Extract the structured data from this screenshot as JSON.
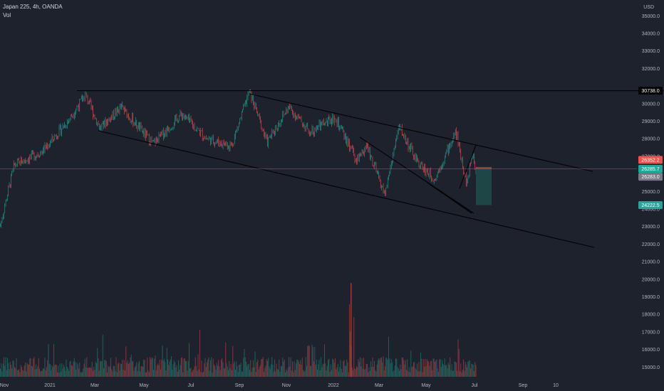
{
  "header": {
    "symbol": "Japan 225, 4h, OANDA",
    "indicator": "Vol"
  },
  "colors": {
    "background": "#1e222d",
    "up": "#26a69a",
    "down": "#ef5350",
    "line": "#000000",
    "text": "#b2b5be",
    "position_fill": "#1f4a4a"
  },
  "chart_data": {
    "type": "candlestick",
    "currency": "USD",
    "y_axis_ticks": [
      "35000.0",
      "34000.0",
      "33000.0",
      "32000.0",
      "30000.0",
      "29000.0",
      "28000.0",
      "27000.0",
      "25000.0",
      "24000.0",
      "23000.0",
      "22000.0",
      "21000.0",
      "20000.0",
      "19000.0",
      "18000.0",
      "17000.0",
      "16000.0",
      "15000.0"
    ],
    "x_axis_ticks": [
      "Nov",
      "2021",
      "Mar",
      "May",
      "Jul",
      "Sep",
      "Nov",
      "2022",
      "Mar",
      "May",
      "Jul",
      "Sep",
      "10"
    ],
    "ylim": [
      14400,
      35600
    ],
    "price_tags": [
      {
        "label": "30738.0",
        "value": 30738.0,
        "style": "horizontal-line"
      },
      {
        "label": "26352.2",
        "value": 26352.2,
        "style": "stop-loss"
      },
      {
        "label": "26285.7",
        "value": 26285.7,
        "style": "current"
      },
      {
        "label": "26283.0",
        "value": 26283.0,
        "style": "entry"
      },
      {
        "label": "24222.5",
        "value": 24222.5,
        "style": "target"
      }
    ],
    "price_path": [
      [
        "Nov",
        23000
      ],
      [
        "2021",
        27500
      ],
      [
        "Mar",
        30400
      ],
      [
        "May",
        28600
      ],
      [
        "Jul",
        28500
      ],
      [
        "Sep",
        30700
      ],
      [
        "Nov",
        29500
      ],
      [
        "2022",
        28700
      ],
      [
        "Mar",
        25000
      ],
      [
        "May",
        26800
      ],
      [
        "Jul",
        26300
      ]
    ],
    "volume_range": [
      15000,
      19800
    ],
    "grid": false
  }
}
